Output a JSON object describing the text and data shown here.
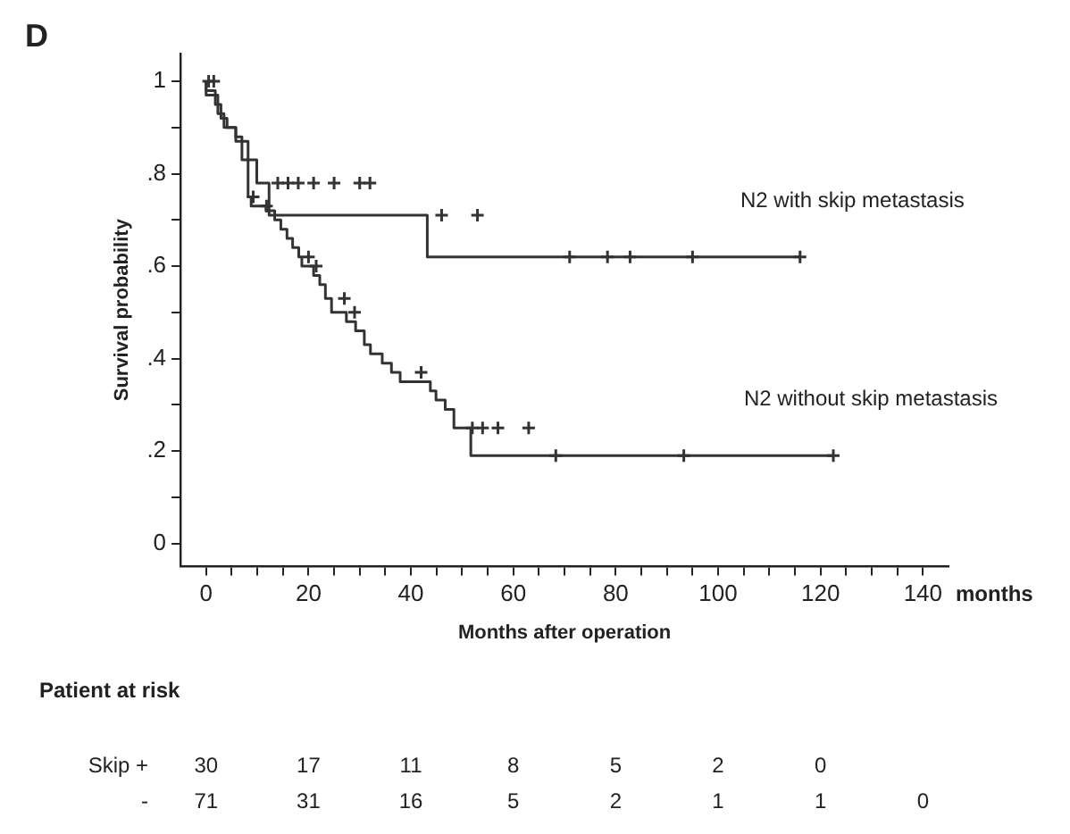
{
  "chart_data": {
    "type": "step",
    "xlabel": "Months after operation",
    "ylabel": "Survival probability",
    "annotations": [
      "D",
      "months",
      "Patient at risk",
      "Skip +",
      "30",
      "17",
      "11",
      "8",
      "5",
      "2",
      "0",
      "-",
      "71",
      "31",
      "16",
      "5",
      "2",
      "1",
      "1",
      "0"
    ],
    "xlim": [
      -5,
      145
    ],
    "ylim": [
      -0.05,
      1.06
    ],
    "xticks": [
      0,
      {
        "value": 5,
        "label": null
      },
      {
        "value": 10,
        "label": null
      },
      {
        "value": 15,
        "label": null
      },
      20,
      {
        "value": 25,
        "label": null
      },
      {
        "value": 30,
        "label": null
      },
      {
        "value": 35,
        "label": null
      },
      40,
      {
        "value": 45,
        "label": null
      },
      {
        "value": 50,
        "label": null
      },
      {
        "value": 55,
        "label": null
      },
      60,
      {
        "value": 65,
        "label": null
      },
      {
        "value": 70,
        "label": null
      },
      {
        "value": 75,
        "label": null
      },
      80,
      {
        "value": 85,
        "label": null
      },
      {
        "value": 90,
        "label": null
      },
      {
        "value": 95,
        "label": null
      },
      100,
      {
        "value": 105,
        "label": null
      },
      {
        "value": 110,
        "label": null
      },
      {
        "value": 115,
        "label": null
      },
      120,
      {
        "value": 125,
        "label": null
      },
      {
        "value": 130,
        "label": null
      },
      {
        "value": 135,
        "label": null
      },
      140
    ],
    "yticks": [
      0,
      {
        "value": 0.1,
        "label": null
      },
      {
        "value": 0.2,
        "label": ".2"
      },
      {
        "value": 0.3,
        "label": null
      },
      {
        "value": 0.4,
        "label": ".4"
      },
      {
        "value": 0.5,
        "label": null
      },
      {
        "value": 0.6,
        "label": ".6"
      },
      {
        "value": 0.7,
        "label": null
      },
      {
        "value": 0.8,
        "label": ".8"
      },
      {
        "value": 0.9,
        "label": null
      },
      1
    ],
    "grid": false,
    "legend": false,
    "series": [
      {
        "name": "N2 with skip metastasis",
        "color": "#333333",
        "x": [
          0,
          2.3,
          3.5,
          5.8,
          8.2,
          9.9,
          12.3,
          43.2,
          70.4,
          116
        ],
        "values": [
          1,
          0.97,
          0.93,
          0.9,
          0.87,
          0.83,
          0.78,
          0.71,
          0.62,
          0.62
        ]
      },
      {
        "name": "N2 without skip metastasis",
        "color": "#333333",
        "x": [
          0,
          1.8,
          2.9,
          4.1,
          5.8,
          7,
          8.2,
          8.8,
          11.7,
          13.4,
          14.6,
          15.8,
          16.9,
          18.1,
          18.7,
          21,
          22.2,
          23.3,
          24.5,
          27.4,
          29.2,
          30.9,
          32.1,
          34.4,
          36.2,
          37.9,
          43.8,
          44.9,
          46.7,
          48.4,
          51.7,
          67.7,
          122.5
        ],
        "values": [
          1,
          0.98,
          0.95,
          0.92,
          0.9,
          0.88,
          0.83,
          0.75,
          0.73,
          0.72,
          0.7,
          0.68,
          0.66,
          0.64,
          0.62,
          0.6,
          0.58,
          0.56,
          0.53,
          0.5,
          0.48,
          0.46,
          0.43,
          0.41,
          0.39,
          0.37,
          0.35,
          0.33,
          0.31,
          0.29,
          0.25,
          0.19,
          0.19
        ]
      },
      {
        "type": "scatter",
        "marker": "cross",
        "color": "#333333",
        "x": [
          0.5,
          1.5,
          14,
          16,
          18,
          21,
          25,
          30,
          32,
          46,
          53,
          71,
          78.4,
          82.8,
          95,
          116
        ],
        "values": [
          1,
          1,
          0.78,
          0.78,
          0.78,
          0.78,
          0.78,
          0.78,
          0.78,
          0.71,
          0.71,
          0.62,
          0.62,
          0.62,
          0.62,
          0.62
        ]
      },
      {
        "type": "scatter",
        "marker": "cross",
        "color": "#333333",
        "x": [
          9.2,
          11.8,
          20,
          21.5,
          27,
          29,
          42,
          52,
          54,
          57,
          63,
          68.3,
          93.3,
          122.5
        ],
        "values": [
          0.75,
          0.73,
          0.62,
          0.6,
          0.53,
          0.5,
          0.37,
          0.25,
          0.25,
          0.25,
          0.25,
          0.19,
          0.19,
          0.19
        ]
      }
    ]
  }
}
